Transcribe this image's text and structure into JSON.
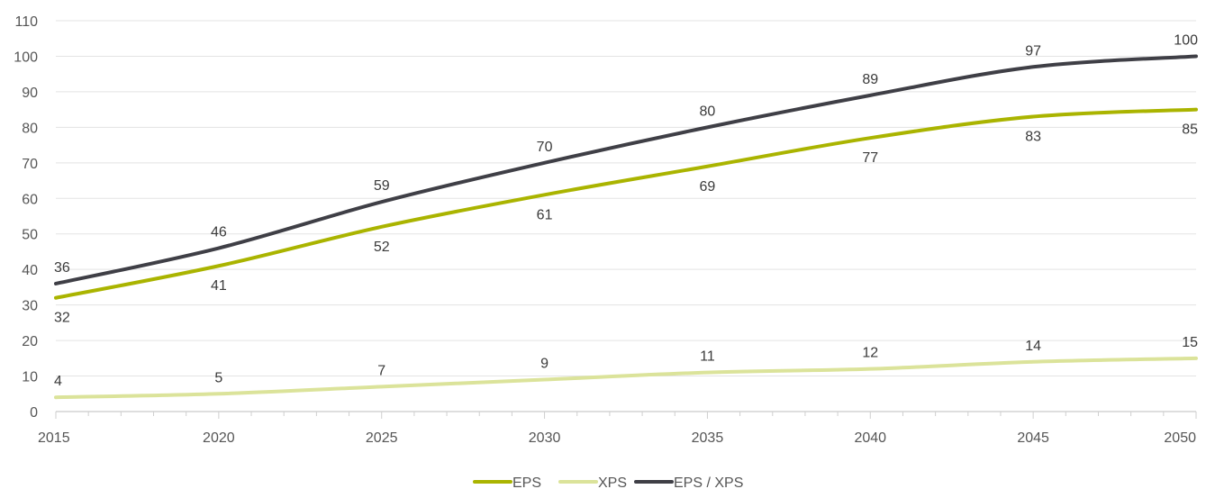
{
  "chart_data": {
    "type": "line",
    "title": "",
    "xlabel": "",
    "ylabel": "",
    "x": [
      2015,
      2020,
      2025,
      2030,
      2035,
      2040,
      2045,
      2050
    ],
    "xlim": [
      2015,
      2050
    ],
    "ylim": [
      0,
      110
    ],
    "x_ticks": [
      2015,
      2020,
      2025,
      2030,
      2035,
      2040,
      2045,
      2050
    ],
    "y_ticks": [
      0,
      10,
      20,
      30,
      40,
      50,
      60,
      70,
      80,
      90,
      100,
      110
    ],
    "grid": true,
    "legend_position": "bottom",
    "series": [
      {
        "name": "EPS",
        "color": "#aab400",
        "values": [
          32,
          41,
          52,
          61,
          69,
          77,
          83,
          85
        ],
        "label_position": "below"
      },
      {
        "name": "XPS",
        "color": "#dbe39a",
        "values": [
          4,
          5,
          7,
          9,
          11,
          12,
          14,
          15
        ],
        "label_position": "above"
      },
      {
        "name": "EPS / XPS",
        "color": "#3f3f46",
        "values": [
          36,
          46,
          59,
          70,
          80,
          89,
          97,
          100
        ],
        "label_position": "above"
      }
    ]
  }
}
